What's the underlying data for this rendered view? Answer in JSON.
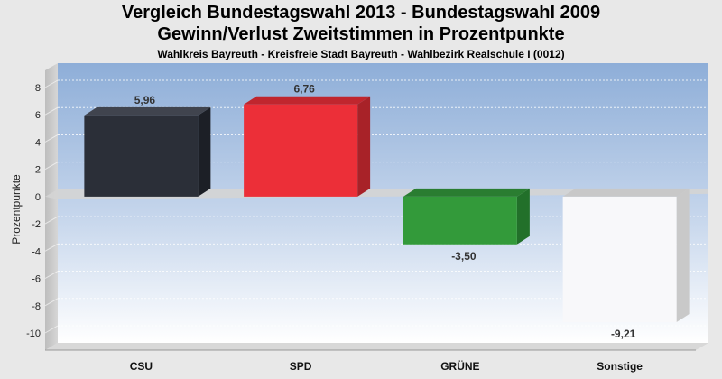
{
  "header": {
    "title_line1": "Vergleich Bundestagswahl 2013 - Bundestagswahl 2009",
    "title_line2": "Gewinn/Verlust Zweitstimmen in Prozentpunkte",
    "subtitle": "Wahlkreis Bayreuth - Kreisfreie Stadt Bayreuth - Wahlbezirk Realschule I (0012)"
  },
  "chart_data": {
    "type": "bar",
    "title": "Vergleich Bundestagswahl 2013 - Bundestagswahl 2009",
    "subtitle": "Gewinn/Verlust Zweitstimmen in Prozentpunkte",
    "xlabel": "",
    "ylabel": "Prozentpunkte",
    "categories": [
      "CSU",
      "SPD",
      "GRÜNE",
      "Sonstige"
    ],
    "values": [
      5.96,
      6.76,
      -3.5,
      -9.21
    ],
    "value_labels": [
      "5,96",
      "6,76",
      "-3,50",
      "-9,21"
    ],
    "colors": [
      "#2b2f38",
      "#ec2f38",
      "#339a3a",
      "#f8f8fa"
    ],
    "ylim": [
      -10,
      8
    ],
    "yticks": [
      8,
      6,
      4,
      2,
      0,
      -2,
      -4,
      -6,
      -8,
      -10
    ],
    "grid": true,
    "legend": "none"
  }
}
